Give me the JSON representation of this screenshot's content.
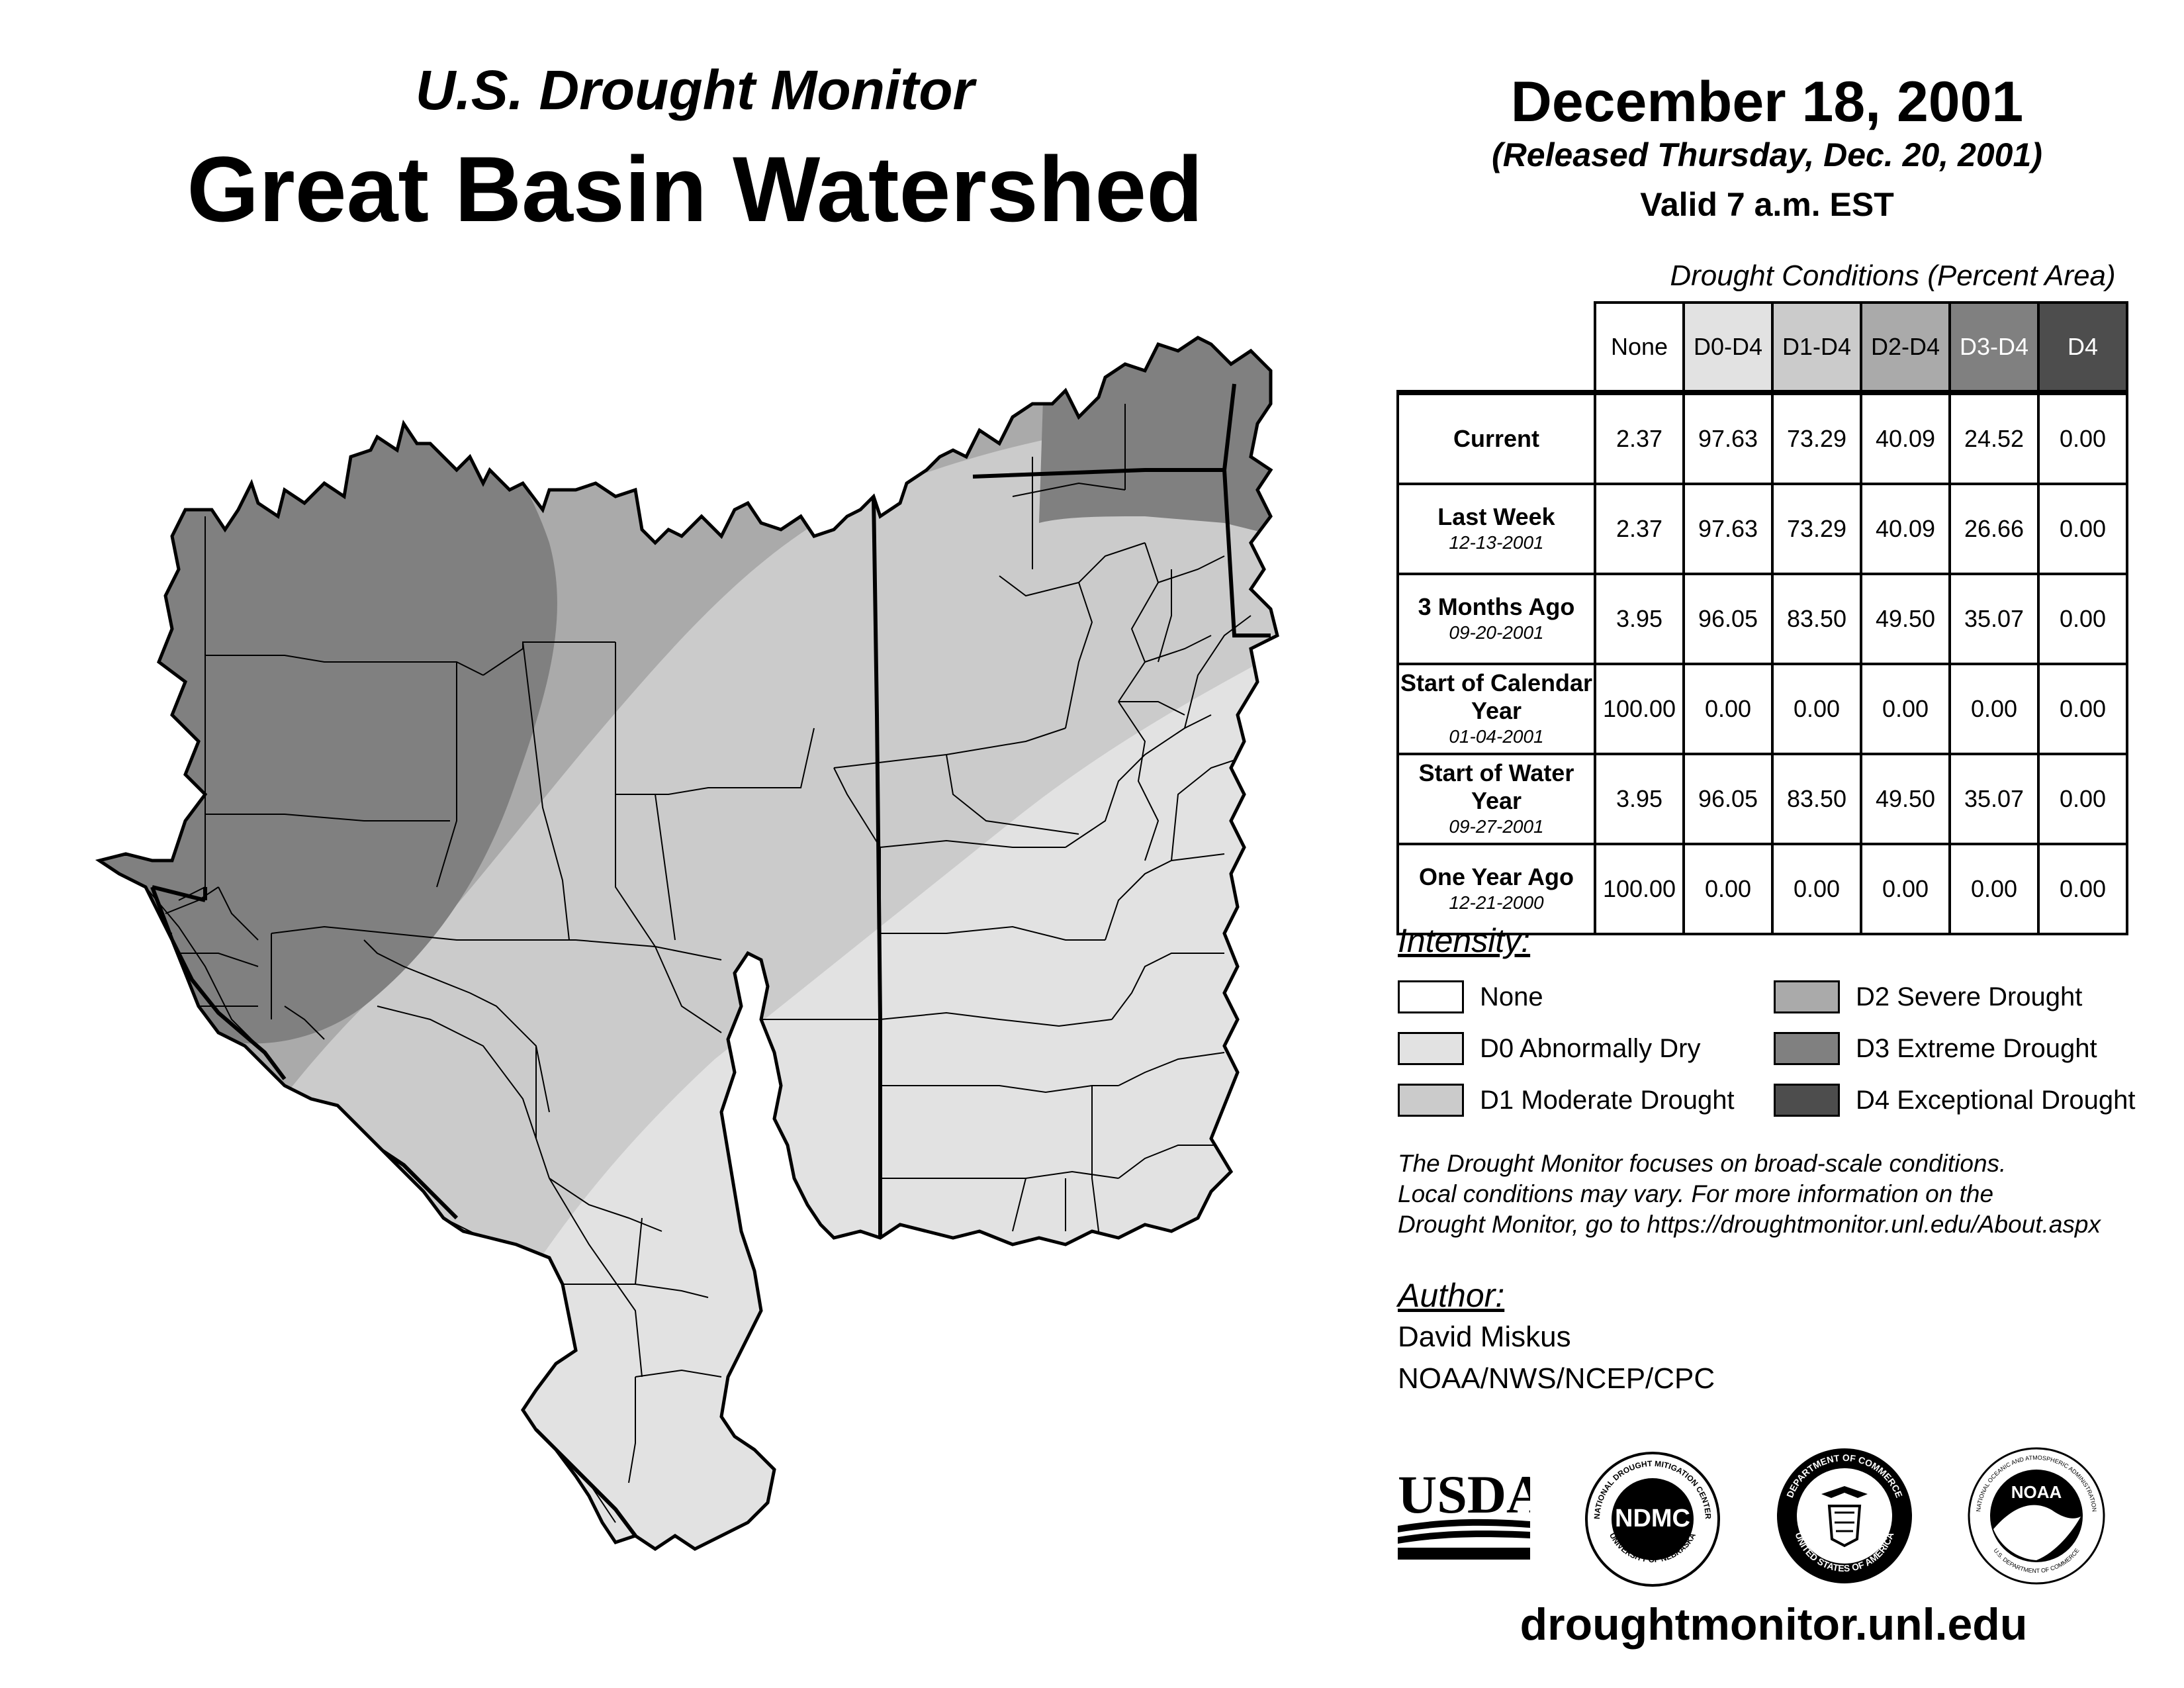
{
  "header": {
    "subtitle": "U.S. Drought Monitor",
    "title": "Great Basin Watershed",
    "date": "December 18, 2001",
    "released": "(Released Thursday, Dec. 20, 2001)",
    "valid": "Valid 7 a.m. EST"
  },
  "table": {
    "caption": "Drought Conditions (Percent Area)",
    "columns": [
      "None",
      "D0-D4",
      "D1-D4",
      "D2-D4",
      "D3-D4",
      "D4"
    ],
    "rows": [
      {
        "label": "Current",
        "date": "",
        "values": [
          "2.37",
          "97.63",
          "73.29",
          "40.09",
          "24.52",
          "0.00"
        ]
      },
      {
        "label": "Last Week",
        "date": "12-13-2001",
        "values": [
          "2.37",
          "97.63",
          "73.29",
          "40.09",
          "26.66",
          "0.00"
        ]
      },
      {
        "label": "3 Months Ago",
        "date": "09-20-2001",
        "values": [
          "3.95",
          "96.05",
          "83.50",
          "49.50",
          "35.07",
          "0.00"
        ]
      },
      {
        "label": "Start of Calendar Year",
        "date": "01-04-2001",
        "values": [
          "100.00",
          "0.00",
          "0.00",
          "0.00",
          "0.00",
          "0.00"
        ]
      },
      {
        "label": "Start of Water Year",
        "date": "09-27-2001",
        "values": [
          "3.95",
          "96.05",
          "83.50",
          "49.50",
          "35.07",
          "0.00"
        ]
      },
      {
        "label": "One Year Ago",
        "date": "12-21-2000",
        "values": [
          "100.00",
          "0.00",
          "0.00",
          "0.00",
          "0.00",
          "0.00"
        ]
      }
    ]
  },
  "legend": {
    "title": "Intensity:",
    "items": [
      {
        "label": "None",
        "color": "#ffffff"
      },
      {
        "label": "D0 Abnormally Dry",
        "color": "#e2e2e2"
      },
      {
        "label": "D1 Moderate Drought",
        "color": "#cbcbcb"
      },
      {
        "label": "D2 Severe Drought",
        "color": "#aaaaaa"
      },
      {
        "label": "D3 Extreme Drought",
        "color": "#808080"
      },
      {
        "label": "D4 Exceptional Drought",
        "color": "#4d4d4d"
      }
    ]
  },
  "note": {
    "line1": "The Drought Monitor focuses on broad-scale conditions.",
    "line2": "Local conditions may vary. For more information on the",
    "line3": "Drought Monitor, go to https://droughtmonitor.unl.edu/About.aspx"
  },
  "author": {
    "title": "Author:",
    "name": "David Miskus",
    "org": "NOAA/NWS/NCEP/CPC"
  },
  "logos": {
    "usda": "USDA",
    "ndmc": "NDMC",
    "ndmc_top": "NATIONAL DROUGHT MITIGATION CENTER",
    "ndmc_bottom": "UNIVERSITY OF NEBRASKA",
    "doc_top": "DEPARTMENT OF COMMERCE",
    "doc_bottom": "UNITED STATES OF AMERICA",
    "noaa": "NOAA",
    "noaa_ring_top": "NATIONAL OCEANIC AND ATMOSPHERIC ADMINISTRATION",
    "noaa_ring_bottom": "U.S. DEPARTMENT OF COMMERCE"
  },
  "website": "droughtmonitor.unl.edu"
}
